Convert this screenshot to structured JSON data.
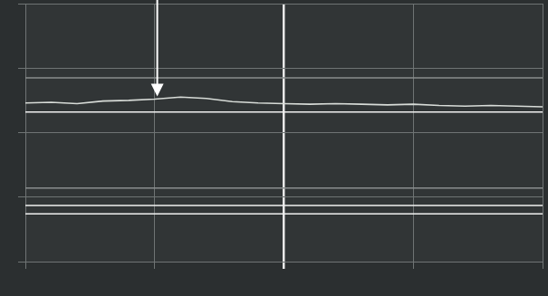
{
  "chart_data": {
    "type": "line",
    "x": [
      0,
      5,
      10,
      15,
      20,
      25,
      30,
      35,
      40,
      45,
      50,
      55,
      60,
      65,
      70,
      75,
      80,
      85,
      90,
      95,
      100
    ],
    "series": [
      {
        "color": "#d8dcd8",
        "values": [
          2.46,
          2.47,
          2.45,
          2.49,
          2.5,
          2.52,
          2.55,
          2.53,
          2.48,
          2.46,
          2.45,
          2.44,
          2.45,
          2.44,
          2.43,
          2.44,
          2.42,
          2.41,
          2.42,
          2.41,
          2.4
        ]
      },
      {
        "color": "#8a8e8e",
        "values": [
          2.85,
          2.85,
          2.85,
          2.85,
          2.85,
          2.85,
          2.85,
          2.85,
          2.85,
          2.85,
          2.85,
          2.85,
          2.85,
          2.85,
          2.85,
          2.85,
          2.85,
          2.85,
          2.85,
          2.85,
          2.85
        ]
      },
      {
        "color": "#f0f0f0",
        "values": [
          2.32,
          2.32,
          2.32,
          2.32,
          2.32,
          2.32,
          2.32,
          2.32,
          2.32,
          2.32,
          2.32,
          2.32,
          2.32,
          2.32,
          2.32,
          2.32,
          2.32,
          2.32,
          2.32,
          2.32,
          2.32
        ]
      },
      {
        "color": "#8a8e8e",
        "values": [
          1.14,
          1.14,
          1.14,
          1.14,
          1.14,
          1.14,
          1.14,
          1.14,
          1.14,
          1.14,
          1.14,
          1.14,
          1.14,
          1.14,
          1.14,
          1.14,
          1.14,
          1.14,
          1.14,
          1.14,
          1.14
        ]
      },
      {
        "color": "#f0f0f0",
        "values": [
          0.87,
          0.87,
          0.87,
          0.87,
          0.87,
          0.87,
          0.87,
          0.87,
          0.87,
          0.87,
          0.87,
          0.87,
          0.87,
          0.87,
          0.87,
          0.87,
          0.87,
          0.87,
          0.87,
          0.87,
          0.87
        ]
      },
      {
        "color": "#f0f0f0",
        "values": [
          0.74,
          0.74,
          0.74,
          0.74,
          0.74,
          0.74,
          0.74,
          0.74,
          0.74,
          0.74,
          0.74,
          0.74,
          0.74,
          0.74,
          0.74,
          0.74,
          0.74,
          0.74,
          0.74,
          0.74,
          0.74
        ]
      }
    ],
    "xlim": [
      0,
      100
    ],
    "xticks": [
      0,
      25,
      50,
      75,
      100
    ],
    "ylim": [
      0,
      4
    ],
    "yticks": [
      0,
      1,
      2,
      3,
      4
    ],
    "grid": true,
    "tick_labels": false
  }
}
